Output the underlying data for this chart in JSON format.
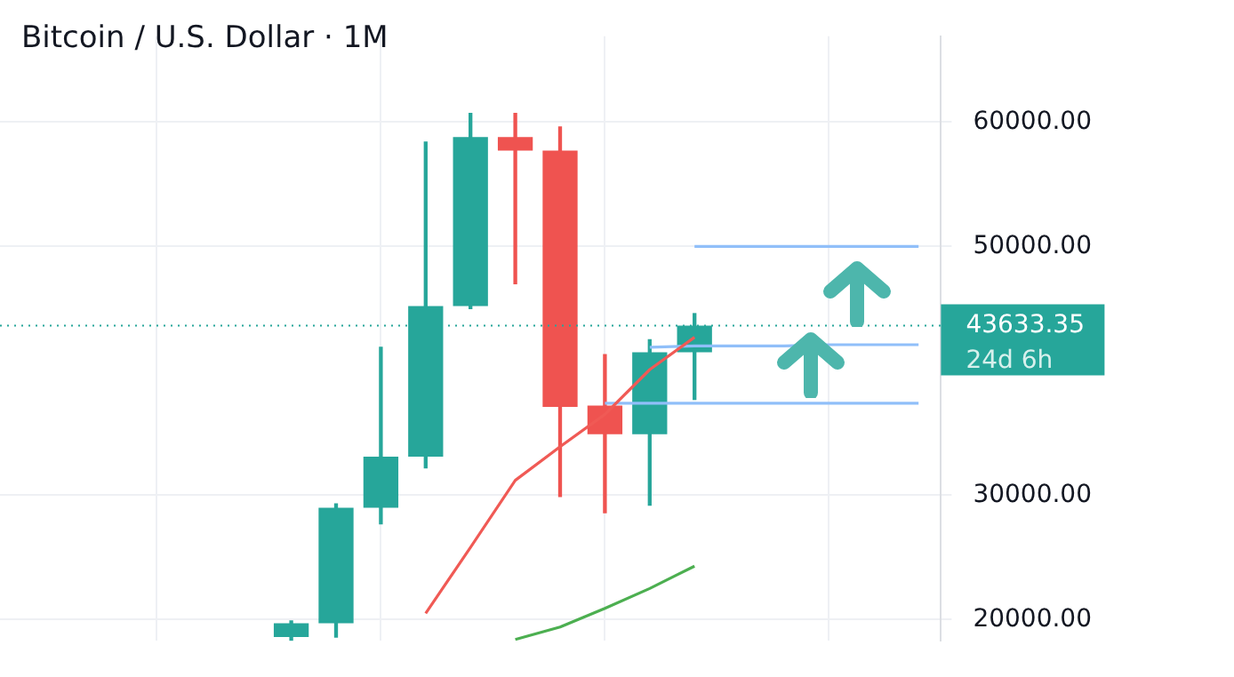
{
  "chart_data": {
    "type": "candlestick",
    "title": "Bitcoin / U.S. Dollar · 1M",
    "categories": [
      null,
      null,
      null,
      null,
      null,
      null,
      null,
      null,
      null,
      null,
      null,
      null,
      null,
      null,
      null,
      null,
      null,
      null,
      null,
      null,
      null
    ],
    "ohlc": [
      null,
      null,
      null,
      null,
      null,
      null,
      [
        18600,
        19900,
        18300,
        19700
      ],
      [
        19700,
        29300,
        18600,
        29000
      ],
      [
        29000,
        41900,
        27700,
        33100
      ],
      [
        33100,
        58400,
        32200,
        45200
      ],
      [
        45200,
        60700,
        45000,
        58800
      ],
      [
        58800,
        60700,
        47000,
        57700
      ],
      [
        57700,
        59600,
        29900,
        37100
      ],
      [
        37200,
        41300,
        28600,
        34900
      ],
      [
        34900,
        42500,
        29200,
        41500
      ],
      [
        41500,
        44600,
        37700,
        43633.35
      ],
      null,
      null,
      null,
      null,
      null
    ],
    "colors": [
      null,
      null,
      null,
      null,
      null,
      null,
      "#26a69a",
      "#26a69a",
      "#26a69a",
      "#26a69a",
      "#26a69a",
      "#ef5350",
      "#ef5350",
      "#ef5350",
      "#26a69a",
      "#26a69a",
      null,
      null,
      null,
      null,
      null
    ],
    "series": [
      {
        "type": "line",
        "color": "#f05a55",
        "values": [
          null,
          null,
          null,
          null,
          null,
          null,
          null,
          null,
          null,
          20500,
          25800,
          31200,
          33900,
          36500,
          40100,
          42700,
          null,
          null,
          null,
          null,
          null
        ]
      },
      {
        "type": "line",
        "color": "#4caf50",
        "values": [
          null,
          null,
          null,
          null,
          null,
          null,
          null,
          null,
          null,
          null,
          null,
          18400,
          19400,
          20900,
          22500,
          24300,
          null,
          null,
          null,
          null,
          null
        ]
      },
      {
        "type": "line",
        "color": "#90bff9",
        "values": [
          null,
          null,
          null,
          null,
          null,
          null,
          null,
          null,
          null,
          null,
          null,
          null,
          null,
          null,
          null,
          50000,
          50000,
          50000,
          50000,
          50000,
          50000
        ]
      },
      {
        "type": "line",
        "color": "#90bff9",
        "values": [
          null,
          null,
          null,
          null,
          null,
          null,
          null,
          null,
          null,
          null,
          null,
          null,
          null,
          null,
          41900,
          42000,
          42000,
          42000,
          42100,
          42100,
          42100
        ]
      },
      {
        "type": "line",
        "color": "#90bff9",
        "values": [
          null,
          null,
          null,
          null,
          null,
          null,
          null,
          null,
          null,
          null,
          null,
          null,
          null,
          37400,
          37400,
          37400,
          37400,
          37400,
          37400,
          37400,
          37400
        ]
      }
    ],
    "ref_lines": [
      {
        "axis": "y",
        "value": 43633.35,
        "label": "43633.35",
        "color": "#26a69a",
        "line_style": "dotted"
      }
    ],
    "annotations": [
      "24d 6h"
    ],
    "ylim": [
      18300,
      66900
    ],
    "yticks": [
      {
        "value": 20000,
        "label": "20000.00"
      },
      {
        "value": 30000,
        "label": "30000.00"
      },
      {
        "value": 50000,
        "label": "50000.00"
      },
      {
        "value": 60000,
        "label": "60000.00"
      }
    ],
    "tick_labels": "y",
    "grid": true,
    "marker": "none"
  }
}
